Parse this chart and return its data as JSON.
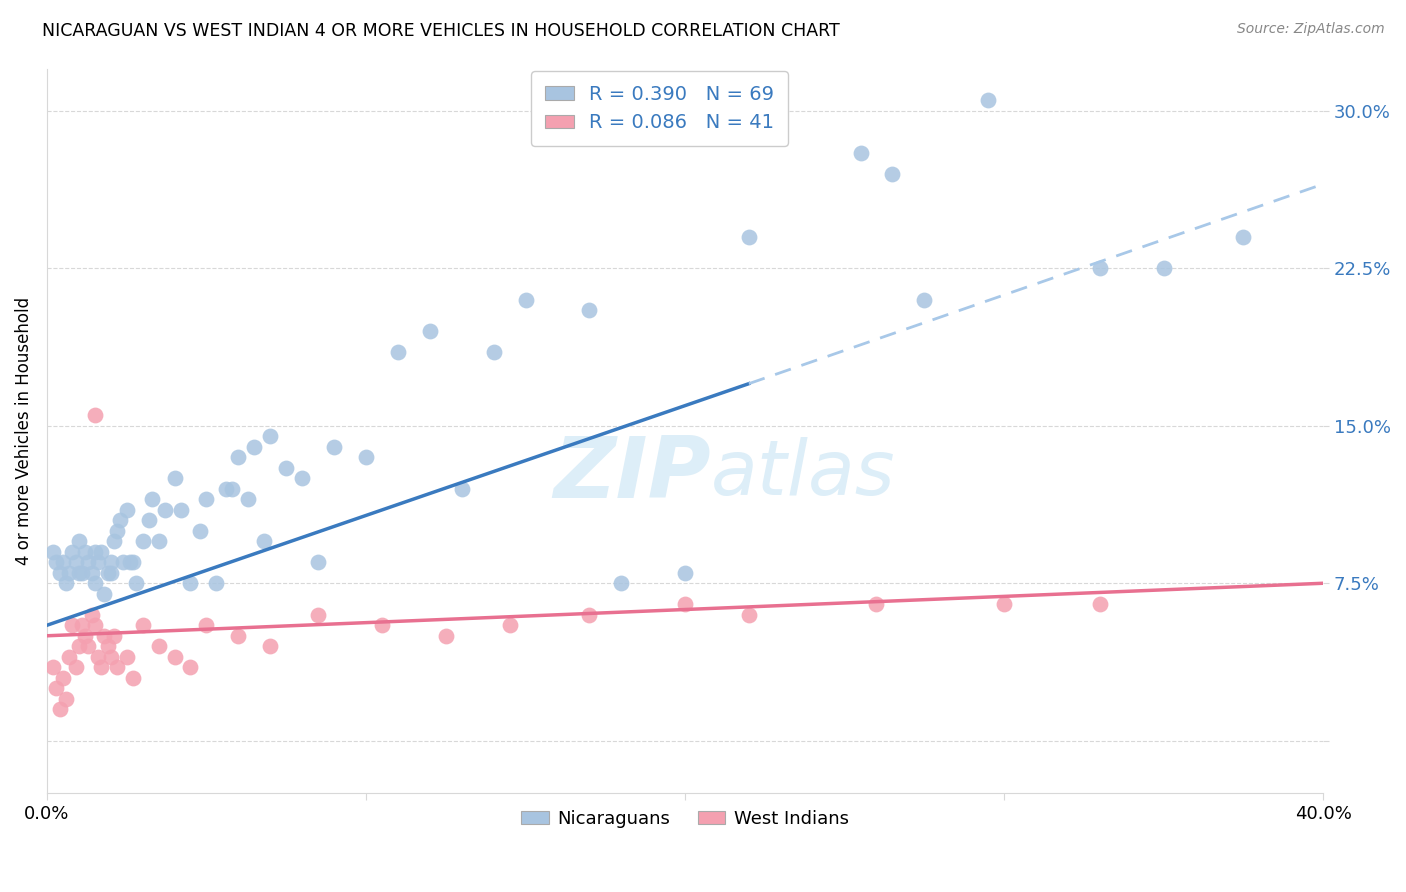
{
  "title": "NICARAGUAN VS WEST INDIAN 4 OR MORE VEHICLES IN HOUSEHOLD CORRELATION CHART",
  "source": "Source: ZipAtlas.com",
  "ylabel": "4 or more Vehicles in Household",
  "xlim": [
    0.0,
    40.0
  ],
  "ylim": [
    -2.5,
    32.0
  ],
  "ytick_vals": [
    0.0,
    7.5,
    15.0,
    22.5,
    30.0
  ],
  "ytick_labels": [
    "",
    "7.5%",
    "15.0%",
    "22.5%",
    "30.0%"
  ],
  "xtick_vals": [
    0.0,
    10.0,
    20.0,
    30.0,
    40.0
  ],
  "xtick_labels": [
    "0.0%",
    "",
    "",
    "",
    "40.0%"
  ],
  "blue_R": 0.39,
  "blue_N": 69,
  "pink_R": 0.086,
  "pink_N": 41,
  "blue_scatter_color": "#a8c4e0",
  "pink_scatter_color": "#f4a0b0",
  "blue_line_color": "#3a7abf",
  "pink_line_color": "#e87090",
  "blue_dashed_color": "#a8c8e8",
  "grid_color": "#d8d8d8",
  "background_color": "#ffffff",
  "watermark_color": "#ddeef8",
  "nicaraguan_x": [
    0.2,
    0.3,
    0.4,
    0.5,
    0.6,
    0.7,
    0.8,
    0.9,
    1.0,
    1.0,
    1.1,
    1.2,
    1.3,
    1.4,
    1.5,
    1.5,
    1.6,
    1.7,
    1.8,
    1.9,
    2.0,
    2.0,
    2.1,
    2.2,
    2.3,
    2.4,
    2.5,
    2.6,
    2.7,
    2.8,
    3.0,
    3.2,
    3.3,
    3.5,
    3.7,
    4.0,
    4.2,
    4.5,
    4.8,
    5.0,
    5.3,
    5.6,
    5.8,
    6.0,
    6.3,
    6.5,
    6.8,
    7.0,
    7.5,
    8.0,
    8.5,
    9.0,
    10.0,
    11.0,
    12.0,
    13.0,
    14.0,
    15.0,
    17.0,
    18.0,
    20.0,
    22.0,
    25.5,
    26.5,
    27.5,
    29.5,
    33.0,
    35.0,
    37.5
  ],
  "nicaraguan_y": [
    9.0,
    8.5,
    8.0,
    8.5,
    7.5,
    8.0,
    9.0,
    8.5,
    9.5,
    8.0,
    8.0,
    9.0,
    8.5,
    8.0,
    9.0,
    7.5,
    8.5,
    9.0,
    7.0,
    8.0,
    8.5,
    8.0,
    9.5,
    10.0,
    10.5,
    8.5,
    11.0,
    8.5,
    8.5,
    7.5,
    9.5,
    10.5,
    11.5,
    9.5,
    11.0,
    12.5,
    11.0,
    7.5,
    10.0,
    11.5,
    7.5,
    12.0,
    12.0,
    13.5,
    11.5,
    14.0,
    9.5,
    14.5,
    13.0,
    12.5,
    8.5,
    14.0,
    13.5,
    18.5,
    19.5,
    12.0,
    18.5,
    21.0,
    20.5,
    7.5,
    8.0,
    24.0,
    28.0,
    27.0,
    21.0,
    30.5,
    22.5,
    22.5,
    24.0
  ],
  "westindian_x": [
    0.2,
    0.3,
    0.4,
    0.5,
    0.6,
    0.7,
    0.8,
    0.9,
    1.0,
    1.1,
    1.2,
    1.3,
    1.4,
    1.5,
    1.6,
    1.7,
    1.8,
    1.9,
    2.0,
    2.1,
    2.2,
    2.5,
    2.7,
    3.0,
    3.5,
    4.0,
    4.5,
    5.0,
    6.0,
    7.0,
    8.5,
    10.5,
    12.5,
    14.5,
    17.0,
    20.0,
    22.0,
    26.0,
    30.0,
    33.0,
    1.5
  ],
  "westindian_y": [
    3.5,
    2.5,
    1.5,
    3.0,
    2.0,
    4.0,
    5.5,
    3.5,
    4.5,
    5.5,
    5.0,
    4.5,
    6.0,
    5.5,
    4.0,
    3.5,
    5.0,
    4.5,
    4.0,
    5.0,
    3.5,
    4.0,
    3.0,
    5.5,
    4.5,
    4.0,
    3.5,
    5.5,
    5.0,
    4.5,
    6.0,
    5.5,
    5.0,
    5.5,
    6.0,
    6.5,
    6.0,
    6.5,
    6.5,
    6.5,
    15.5
  ],
  "blue_line_x0": 0.0,
  "blue_line_y0": 5.5,
  "blue_line_x1": 22.0,
  "blue_line_y1": 17.0,
  "blue_dash_x0": 22.0,
  "blue_dash_y0": 17.0,
  "blue_dash_x1": 40.0,
  "blue_dash_y1": 26.5,
  "pink_line_x0": 0.0,
  "pink_line_y0": 5.0,
  "pink_line_x1": 40.0,
  "pink_line_y1": 7.5
}
